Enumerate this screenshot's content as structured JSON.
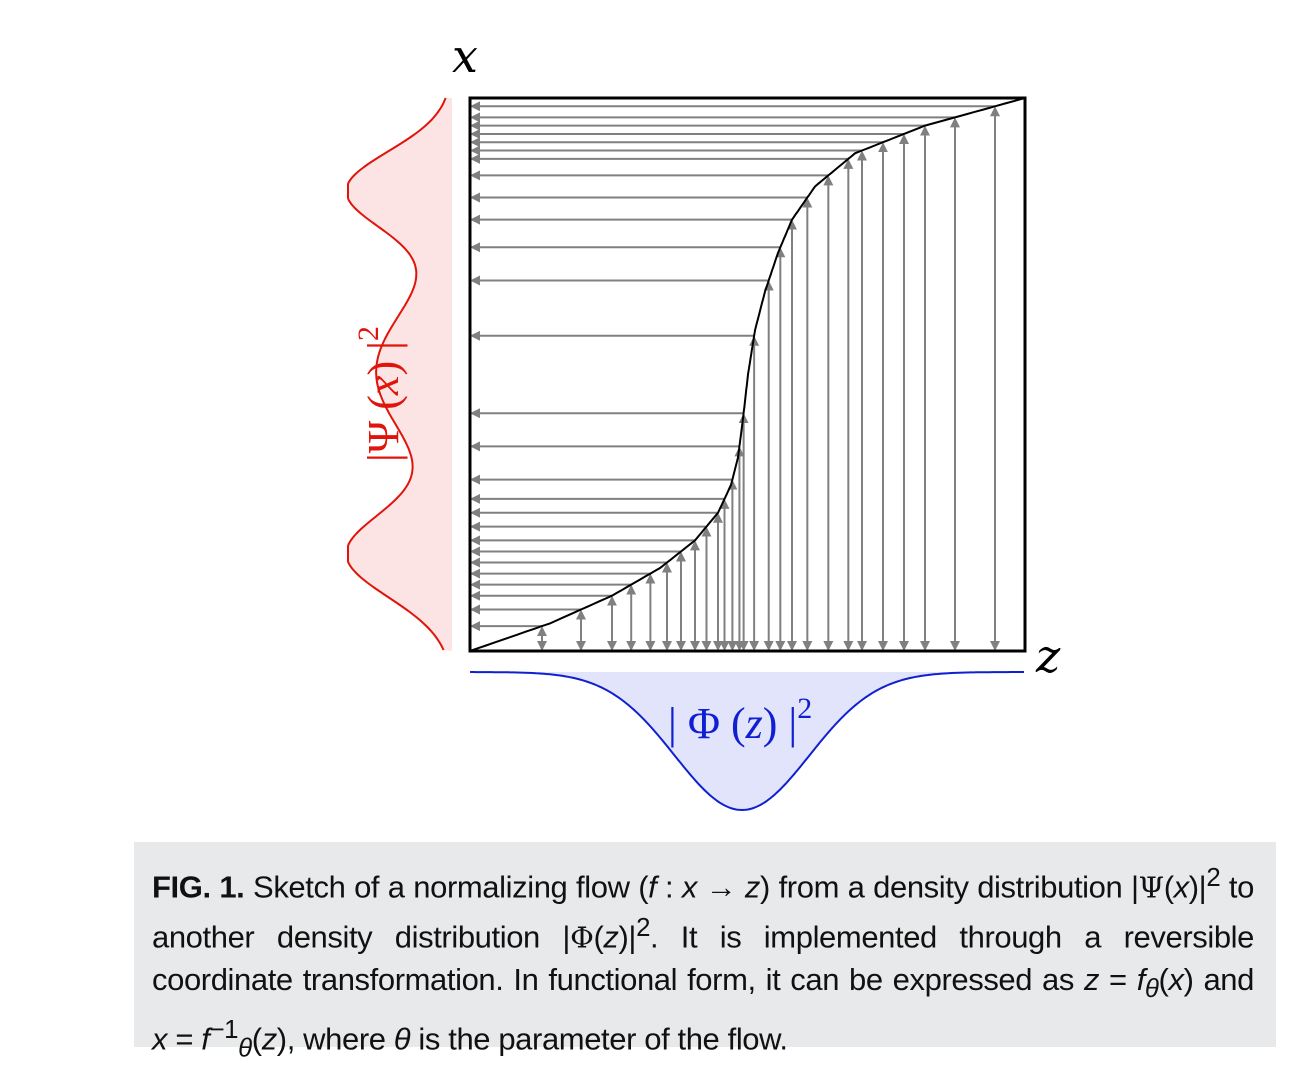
{
  "figure": {
    "axis_x_label": "x",
    "axis_z_label": "z",
    "psi_label": {
      "bar_open": "|",
      "symbol": "Ψ",
      "paren_open": " (",
      "var": "x",
      "paren_close": ")",
      "bar_close": " |",
      "power": "2"
    },
    "phi_label": {
      "bar_open": "|",
      "symbol": " Φ",
      "paren_open": " (",
      "var": "z",
      "paren_close": ")",
      "bar_close": " |",
      "power": "2"
    },
    "colors": {
      "psi_curve": "#e0140a",
      "psi_fill": "#fde4e4",
      "phi_curve": "#1020d0",
      "phi_fill": "#e2e4fb",
      "arrows": "#808080",
      "frame": "#000000"
    }
  },
  "caption": {
    "fig_label": "FIG. 1.",
    "t1": " Sketch of a normalizing flow (",
    "m1": "f",
    "t2": " : ",
    "m2": "x",
    "t3": " → ",
    "m3": "z",
    "t4": ") from a density distribution |",
    "g1": "Ψ",
    "t5": "(",
    "m4": "x",
    "t6": ")|",
    "s1": "2",
    "t7": " to another density distribution |",
    "g2": "Φ",
    "t8": "(",
    "m5": "z",
    "t9": ")|",
    "s2": "2",
    "t10": ". It is implemented through a reversible coordinate transformation. In functional form, it can be expressed as ",
    "m6": "z",
    "t11": " = ",
    "m7": "f",
    "sub1": "θ",
    "t12": "(",
    "m8": "x",
    "t13": ") and ",
    "m9": "x",
    "t14": " = ",
    "m10": "f",
    "sup1": "−1",
    "sub2": "θ",
    "t15": "(",
    "m11": "z",
    "t16": "), where ",
    "m12": "θ",
    "t17": " is the parameter of the flow."
  }
}
